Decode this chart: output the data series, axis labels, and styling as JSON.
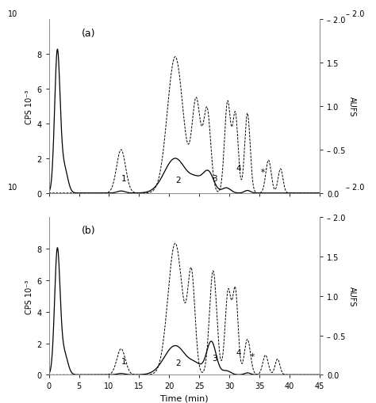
{
  "title_a": "(a)",
  "title_b": "(b)",
  "xlabel": "Time (min)",
  "ylabel_left": "CPS 10⁻³",
  "ylabel_right": "AUFS",
  "xlim": [
    0,
    45
  ],
  "ylim_left": [
    0,
    10
  ],
  "ylim_right": [
    0,
    2.0
  ],
  "yticks_left": [
    0,
    2,
    4,
    6,
    8
  ],
  "yticks_right": [
    0.0,
    0.5,
    1.0,
    1.5,
    2.0
  ],
  "ytick_right_labels": [
    "0.0",
    "– 0.5",
    "1.0",
    "1.5",
    "– 2.0"
  ],
  "xticks": [
    0,
    5,
    10,
    15,
    20,
    25,
    30,
    35,
    40,
    45
  ],
  "background_color": "#f0f0f0",
  "line_color_solid": "#000000",
  "line_color_dash": "#000000",
  "solid_lw": 0.9,
  "dash_lw": 0.7
}
